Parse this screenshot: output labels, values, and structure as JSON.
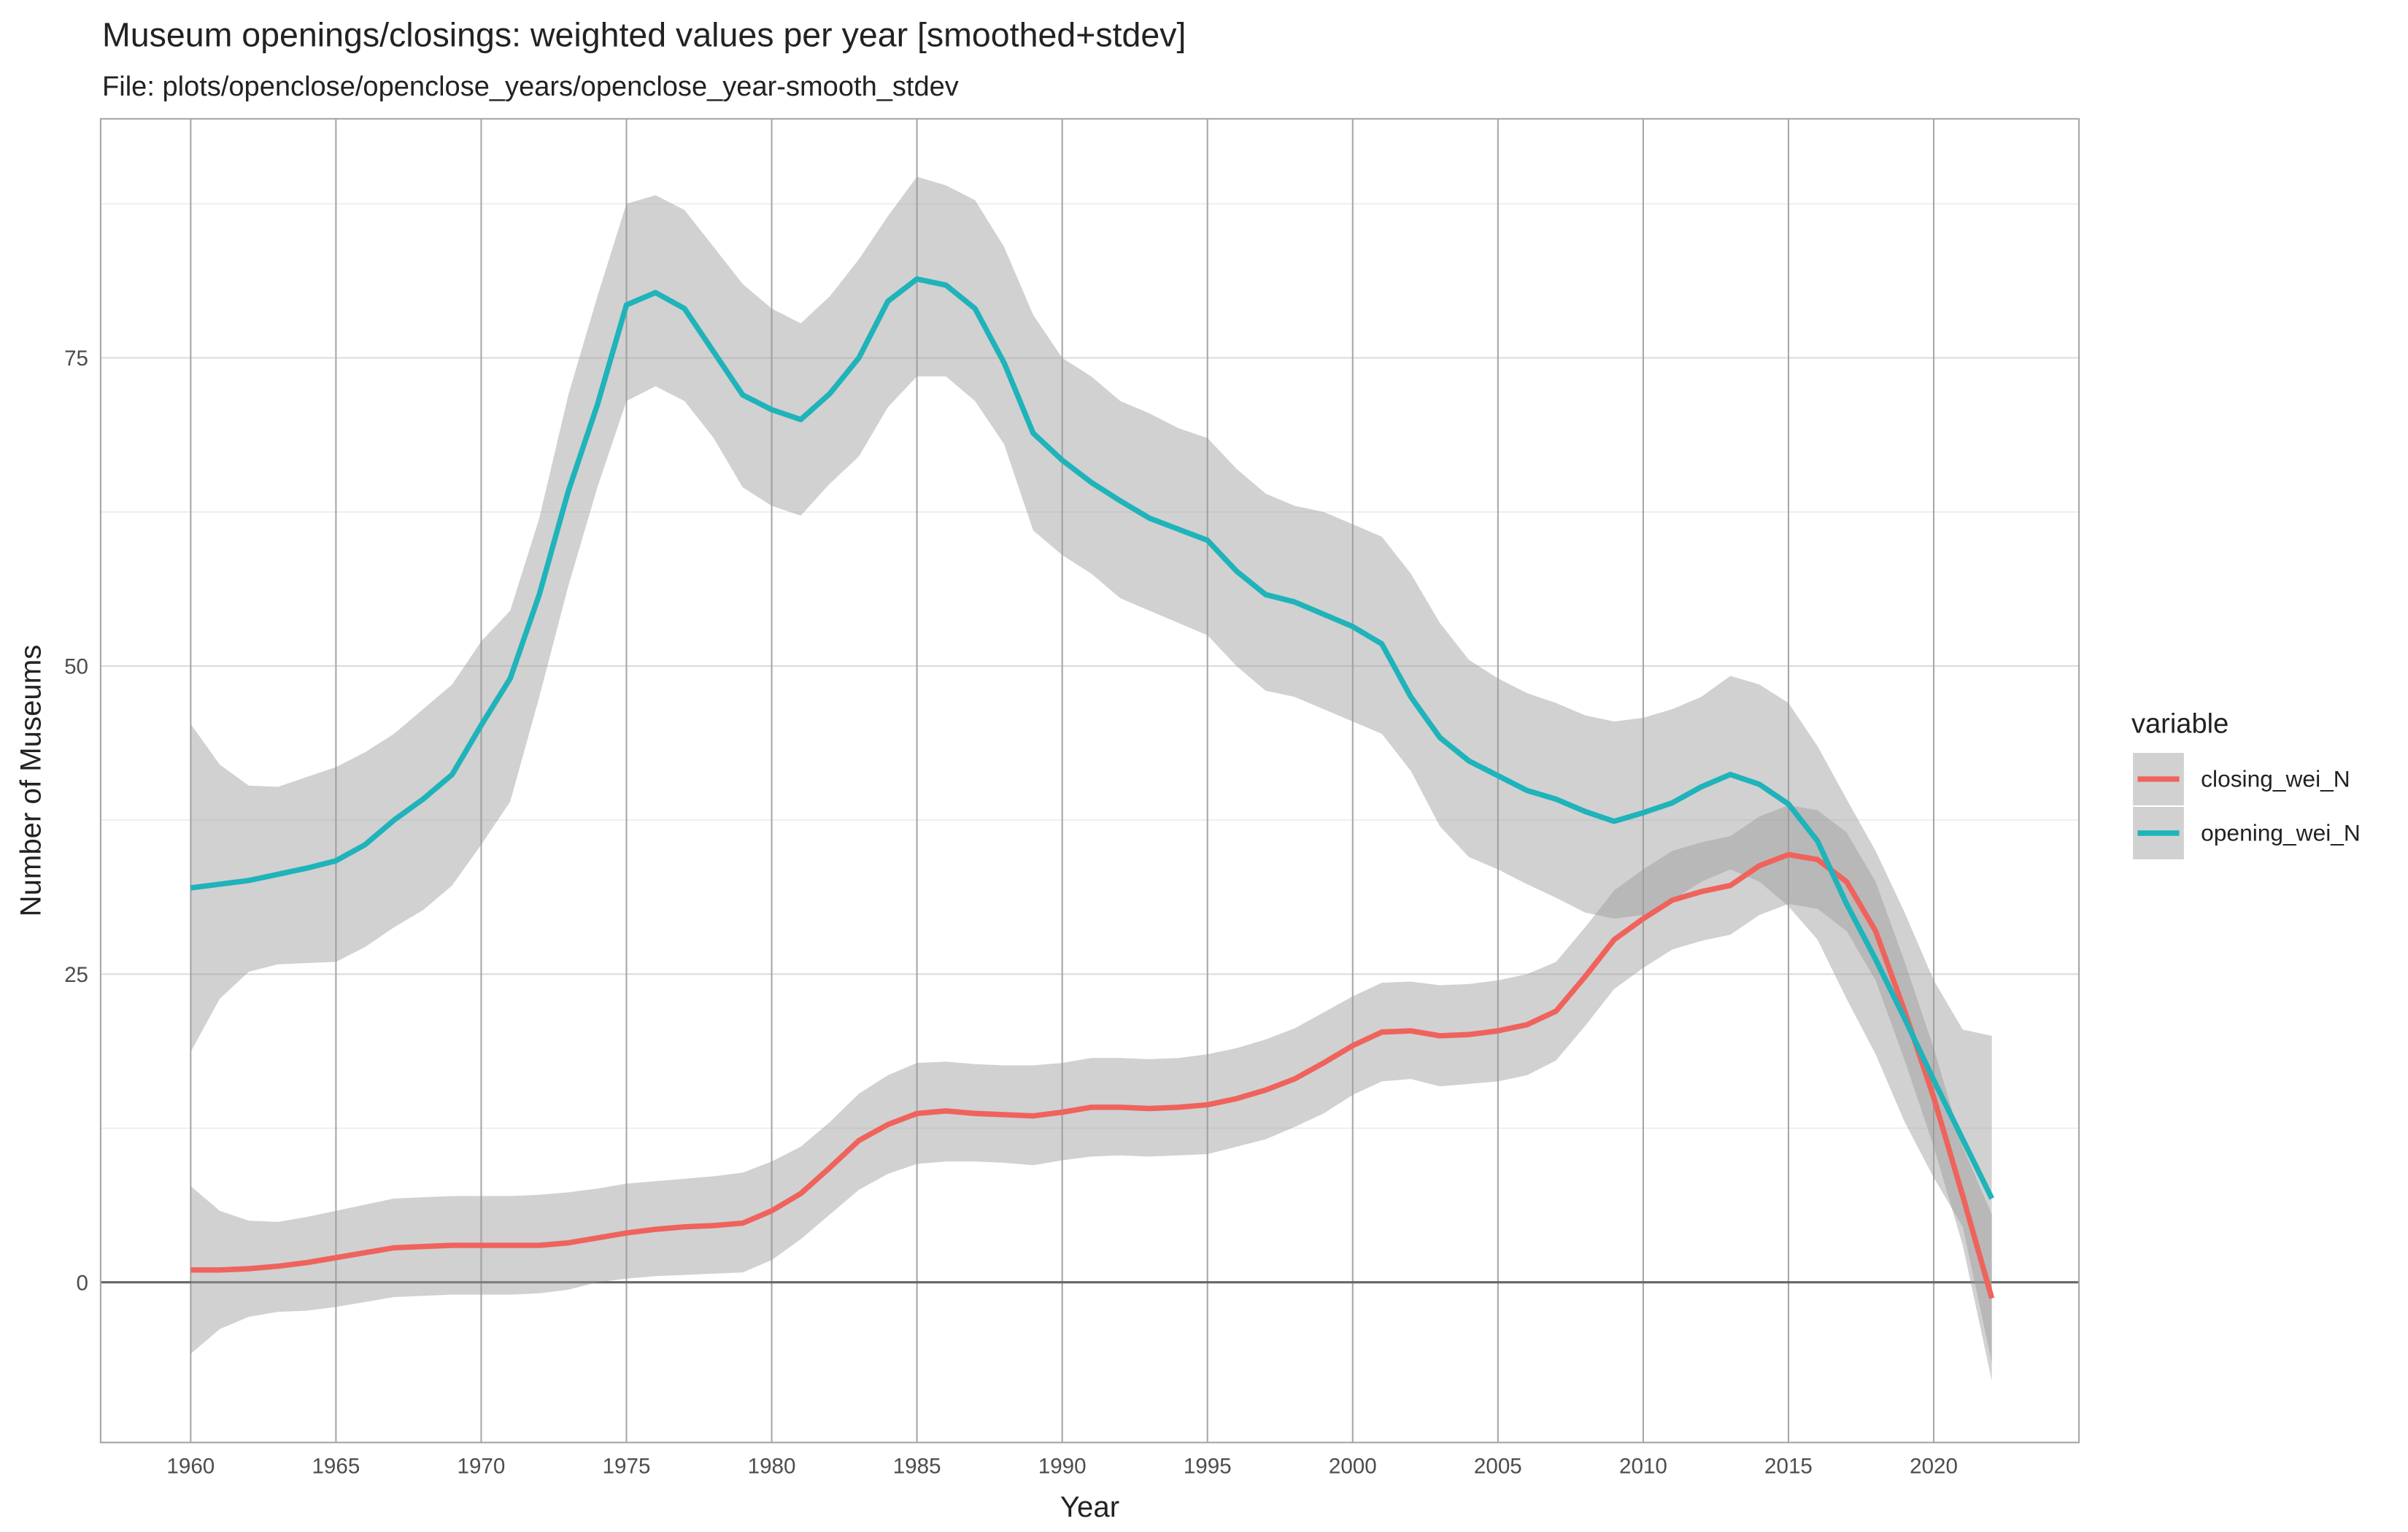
{
  "chart_data": {
    "type": "line",
    "title": "Museum openings/closings: weighted values per year [smoothed+stdev]",
    "subtitle": "File: plots/openclose/openclose_years/openclose_year-smooth_stdev",
    "xlabel": "Year",
    "ylabel": "Number of Museums",
    "legend_title": "variable",
    "legend": "right",
    "grid": true,
    "hline": 0,
    "ribbon_color": "#9a9a9a",
    "x": [
      1960,
      1961,
      1962,
      1963,
      1964,
      1965,
      1966,
      1967,
      1968,
      1969,
      1970,
      1971,
      1972,
      1973,
      1974,
      1975,
      1976,
      1977,
      1978,
      1979,
      1980,
      1981,
      1982,
      1983,
      1984,
      1985,
      1986,
      1987,
      1988,
      1989,
      1990,
      1991,
      1992,
      1993,
      1994,
      1995,
      1996,
      1997,
      1998,
      1999,
      2000,
      2001,
      2002,
      2003,
      2004,
      2005,
      2006,
      2007,
      2008,
      2009,
      2010,
      2011,
      2012,
      2013,
      2014,
      2015,
      2016,
      2017,
      2018,
      2019,
      2020,
      2021,
      2022
    ],
    "xlim": [
      1956.9,
      2025.0
    ],
    "xticks": [
      1960,
      1965,
      1970,
      1975,
      1980,
      1985,
      1990,
      1995,
      2000,
      2005,
      2010,
      2015,
      2020
    ],
    "ylim": [
      -13.0,
      94.4
    ],
    "yticks": [
      0,
      25,
      50,
      75
    ],
    "y_minor_grid": [
      12.5,
      37.5,
      62.5,
      87.5
    ],
    "series": [
      {
        "name": "closing_wei_N",
        "color": "#ef635c",
        "values": [
          1.0,
          1.0,
          1.1,
          1.3,
          1.6,
          2.0,
          2.4,
          2.8,
          2.9,
          3.0,
          3.0,
          3.0,
          3.0,
          3.2,
          3.6,
          4.0,
          4.3,
          4.5,
          4.6,
          4.8,
          5.8,
          7.2,
          9.3,
          11.5,
          12.8,
          13.7,
          13.9,
          13.7,
          13.6,
          13.5,
          13.8,
          14.2,
          14.2,
          14.1,
          14.2,
          14.4,
          14.9,
          15.6,
          16.5,
          17.8,
          19.2,
          20.3,
          20.4,
          20.0,
          20.1,
          20.4,
          20.9,
          22.0,
          24.8,
          27.8,
          29.5,
          31.0,
          31.7,
          32.2,
          33.8,
          34.7,
          34.3,
          32.5,
          28.5,
          22.0,
          15.0,
          7.0,
          -1.3
        ],
        "upper": [
          7.8,
          5.8,
          5.0,
          4.9,
          5.3,
          5.8,
          6.3,
          6.8,
          6.9,
          7.0,
          7.0,
          7.0,
          7.1,
          7.3,
          7.6,
          8.0,
          8.2,
          8.4,
          8.6,
          8.9,
          9.8,
          11.0,
          13.0,
          15.3,
          16.8,
          17.8,
          17.9,
          17.7,
          17.6,
          17.6,
          17.8,
          18.2,
          18.2,
          18.1,
          18.2,
          18.5,
          19.0,
          19.7,
          20.6,
          21.9,
          23.2,
          24.3,
          24.4,
          24.1,
          24.2,
          24.5,
          25.0,
          26.0,
          28.8,
          31.8,
          33.5,
          35.0,
          35.7,
          36.2,
          37.8,
          38.7,
          38.3,
          36.5,
          32.5,
          26.0,
          19.0,
          11.0,
          5.5
        ],
        "lower": [
          -5.8,
          -3.8,
          -2.8,
          -2.4,
          -2.3,
          -2.0,
          -1.6,
          -1.2,
          -1.1,
          -1.0,
          -1.0,
          -1.0,
          -0.9,
          -0.6,
          0.0,
          0.3,
          0.5,
          0.6,
          0.7,
          0.8,
          1.8,
          3.5,
          5.5,
          7.5,
          8.8,
          9.6,
          9.8,
          9.8,
          9.7,
          9.5,
          9.9,
          10.2,
          10.3,
          10.2,
          10.3,
          10.4,
          11.0,
          11.6,
          12.6,
          13.7,
          15.2,
          16.3,
          16.5,
          15.9,
          16.1,
          16.3,
          16.8,
          18.0,
          20.8,
          23.8,
          25.5,
          27.0,
          27.7,
          28.2,
          29.8,
          30.7,
          30.3,
          28.5,
          24.5,
          18.0,
          11.0,
          3.0,
          -8.0
        ]
      },
      {
        "name": "opening_wei_N",
        "color": "#1fb3ba",
        "values": [
          32.0,
          32.3,
          32.6,
          33.1,
          33.6,
          34.2,
          35.5,
          37.5,
          39.2,
          41.2,
          45.2,
          49.0,
          55.8,
          64.2,
          71.2,
          79.3,
          80.3,
          79.0,
          75.5,
          72.0,
          70.8,
          70.0,
          72.1,
          75.0,
          79.6,
          81.4,
          80.9,
          79.0,
          74.6,
          68.9,
          66.7,
          64.9,
          63.4,
          62.0,
          61.1,
          60.2,
          57.7,
          55.8,
          55.2,
          54.2,
          53.2,
          51.8,
          47.5,
          44.2,
          42.3,
          41.1,
          39.9,
          39.2,
          38.2,
          37.4,
          38.1,
          38.9,
          40.2,
          41.2,
          40.4,
          38.8,
          35.8,
          30.7,
          26.2,
          21.4,
          16.4,
          11.6,
          6.8
        ],
        "upper": [
          45.3,
          42.0,
          40.3,
          40.2,
          41.0,
          41.8,
          43.0,
          44.5,
          46.5,
          48.5,
          52.0,
          54.5,
          62.0,
          72.0,
          80.0,
          87.5,
          88.2,
          87.0,
          84.0,
          81.0,
          79.0,
          77.8,
          80.0,
          83.0,
          86.5,
          89.7,
          89.0,
          87.8,
          84.0,
          78.5,
          75.0,
          73.5,
          71.5,
          70.5,
          69.3,
          68.5,
          66.0,
          64.0,
          63.0,
          62.5,
          61.5,
          60.5,
          57.5,
          53.5,
          50.5,
          49.0,
          47.8,
          47.0,
          46.0,
          45.5,
          45.8,
          46.5,
          47.5,
          49.2,
          48.5,
          47.0,
          43.5,
          39.2,
          35.0,
          30.0,
          24.5,
          20.5,
          20.0
        ],
        "lower": [
          18.7,
          23.0,
          25.2,
          25.8,
          25.9,
          26.0,
          27.2,
          28.8,
          30.2,
          32.2,
          35.5,
          39.0,
          47.5,
          56.5,
          64.5,
          71.5,
          72.7,
          71.5,
          68.5,
          64.5,
          63.0,
          62.2,
          64.8,
          67.0,
          71.0,
          73.5,
          73.5,
          71.5,
          68.0,
          61.0,
          59.0,
          57.5,
          55.5,
          54.5,
          53.5,
          52.5,
          50.0,
          48.0,
          47.5,
          46.5,
          45.5,
          44.5,
          41.5,
          37.0,
          34.5,
          33.5,
          32.3,
          31.2,
          30.0,
          29.5,
          29.8,
          31.0,
          32.5,
          33.5,
          32.5,
          30.5,
          27.8,
          23.0,
          18.5,
          13.0,
          8.5,
          4.5,
          -6.5
        ]
      }
    ]
  }
}
